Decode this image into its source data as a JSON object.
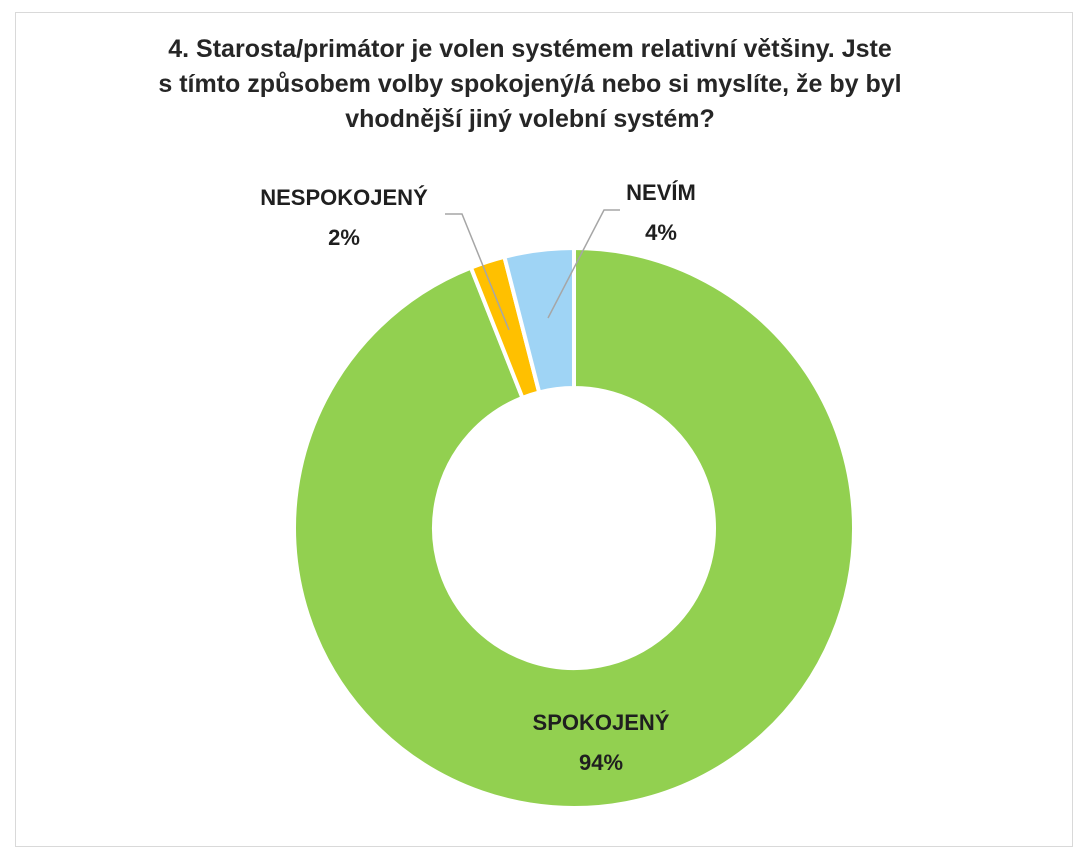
{
  "chart_data": {
    "type": "pie",
    "variant": "donut",
    "title_lines": [
      "4. Starosta/primátor je volen systémem relativní většiny. Jste",
      "s tímto způsobem volby spokojený/á nebo si myslíte, že by byl",
      "vhodnější jiný volební systém?"
    ],
    "slices": [
      {
        "name": "SPOKOJENÝ",
        "value": 94,
        "label": "94%",
        "color": "#92d050"
      },
      {
        "name": "NESPOKOJENÝ",
        "value": 2,
        "label": "2%",
        "color": "#ffc000"
      },
      {
        "name": "NEVÍM",
        "value": 4,
        "label": "4%",
        "color": "#9fd4f5"
      }
    ],
    "legend": "none",
    "data_labels": "category name and percentage"
  }
}
